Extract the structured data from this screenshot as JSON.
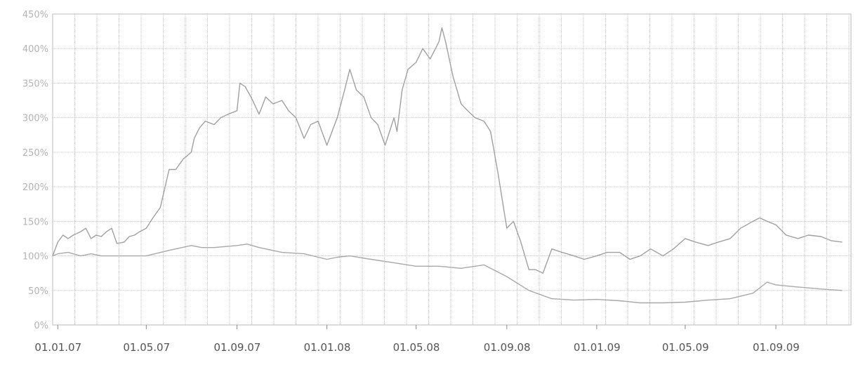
{
  "chart_data": {
    "type": "line",
    "x_tick_labels": [
      "01.01.07",
      "01.05.07",
      "01.09.07",
      "01.01.08",
      "01.05.08",
      "01.09.08",
      "01.01.09",
      "01.05.09",
      "01.09.09"
    ],
    "y_tick_labels": [
      "0%",
      "50%",
      "100%",
      "150%",
      "200%",
      "250%",
      "300%",
      "350%",
      "400%",
      "450%"
    ],
    "ylim": [
      0,
      450
    ],
    "grid": true,
    "legend": "none",
    "series": [
      {
        "color": "#a0a0a0",
        "x": [
          "2006-12-25",
          "2007-01-01",
          "2007-01-08",
          "2007-01-15",
          "2007-01-22",
          "2007-02-01",
          "2007-02-08",
          "2007-02-15",
          "2007-02-22",
          "2007-03-01",
          "2007-03-08",
          "2007-03-15",
          "2007-03-22",
          "2007-04-01",
          "2007-04-08",
          "2007-04-15",
          "2007-04-22",
          "2007-05-01",
          "2007-05-10",
          "2007-05-20",
          "2007-06-01",
          "2007-06-10",
          "2007-06-20",
          "2007-07-01",
          "2007-07-05",
          "2007-07-12",
          "2007-07-20",
          "2007-08-01",
          "2007-08-10",
          "2007-08-20",
          "2007-09-01",
          "2007-09-05",
          "2007-09-12",
          "2007-09-20",
          "2007-10-01",
          "2007-10-10",
          "2007-10-20",
          "2007-11-01",
          "2007-11-10",
          "2007-11-20",
          "2007-12-01",
          "2007-12-10",
          "2007-12-20",
          "2008-01-01",
          "2008-01-08",
          "2008-01-15",
          "2008-01-25",
          "2008-02-01",
          "2008-02-10",
          "2008-02-20",
          "2008-03-01",
          "2008-03-10",
          "2008-03-20",
          "2008-04-01",
          "2008-04-05",
          "2008-04-12",
          "2008-04-20",
          "2008-05-01",
          "2008-05-10",
          "2008-05-20",
          "2008-06-01",
          "2008-06-05",
          "2008-06-10",
          "2008-06-20",
          "2008-07-01",
          "2008-07-10",
          "2008-07-20",
          "2008-08-01",
          "2008-08-10",
          "2008-08-20",
          "2008-09-01",
          "2008-09-10",
          "2008-09-20",
          "2008-10-01",
          "2008-10-10",
          "2008-10-20",
          "2008-11-01",
          "2008-11-15",
          "2008-12-01",
          "2008-12-15",
          "2009-01-01",
          "2009-01-15",
          "2009-02-01",
          "2009-02-15",
          "2009-03-01",
          "2009-03-15",
          "2009-04-01",
          "2009-04-15",
          "2009-05-01",
          "2009-05-15",
          "2009-06-01",
          "2009-06-15",
          "2009-07-01",
          "2009-07-15",
          "2009-08-01",
          "2009-08-10",
          "2009-08-20",
          "2009-09-01",
          "2009-09-15",
          "2009-10-01",
          "2009-10-15",
          "2009-11-01",
          "2009-11-15",
          "2009-11-30"
        ],
        "y": [
          100,
          120,
          130,
          125,
          130,
          135,
          140,
          125,
          130,
          128,
          135,
          140,
          118,
          120,
          128,
          130,
          135,
          140,
          155,
          170,
          225,
          225,
          240,
          250,
          270,
          285,
          295,
          290,
          300,
          305,
          310,
          350,
          345,
          330,
          305,
          330,
          320,
          325,
          310,
          300,
          270,
          290,
          295,
          260,
          280,
          300,
          340,
          370,
          340,
          330,
          300,
          290,
          260,
          300,
          280,
          340,
          370,
          380,
          400,
          385,
          410,
          430,
          410,
          360,
          320,
          310,
          300,
          295,
          280,
          220,
          140,
          150,
          120,
          80,
          80,
          75,
          110,
          105,
          100,
          95,
          100,
          105,
          105,
          95,
          100,
          110,
          100,
          110,
          125,
          120,
          115,
          120,
          125,
          140,
          150,
          155,
          150,
          145,
          130,
          125,
          130,
          128,
          122,
          120
        ]
      },
      {
        "color": "#a8a8a8",
        "x": [
          "2006-12-25",
          "2007-01-01",
          "2007-01-15",
          "2007-02-01",
          "2007-02-15",
          "2007-03-01",
          "2007-04-01",
          "2007-05-01",
          "2007-06-01",
          "2007-07-01",
          "2007-07-15",
          "2007-08-01",
          "2007-09-01",
          "2007-09-15",
          "2007-10-01",
          "2007-11-01",
          "2007-12-01",
          "2008-01-01",
          "2008-01-15",
          "2008-02-01",
          "2008-03-01",
          "2008-04-01",
          "2008-05-01",
          "2008-06-01",
          "2008-07-01",
          "2008-08-01",
          "2008-09-01",
          "2008-10-01",
          "2008-11-01",
          "2008-12-01",
          "2009-01-01",
          "2009-02-01",
          "2009-03-01",
          "2009-04-01",
          "2009-05-01",
          "2009-06-01",
          "2009-07-01",
          "2009-08-01",
          "2009-08-20",
          "2009-09-01",
          "2009-10-01",
          "2009-11-01",
          "2009-11-30"
        ],
        "y": [
          100,
          103,
          105,
          100,
          103,
          100,
          100,
          100,
          108,
          115,
          112,
          112,
          115,
          117,
          112,
          105,
          103,
          95,
          98,
          100,
          95,
          90,
          85,
          85,
          82,
          87,
          70,
          50,
          38,
          36,
          37,
          35,
          32,
          32,
          33,
          36,
          38,
          46,
          62,
          58,
          55,
          52,
          50
        ]
      }
    ]
  }
}
